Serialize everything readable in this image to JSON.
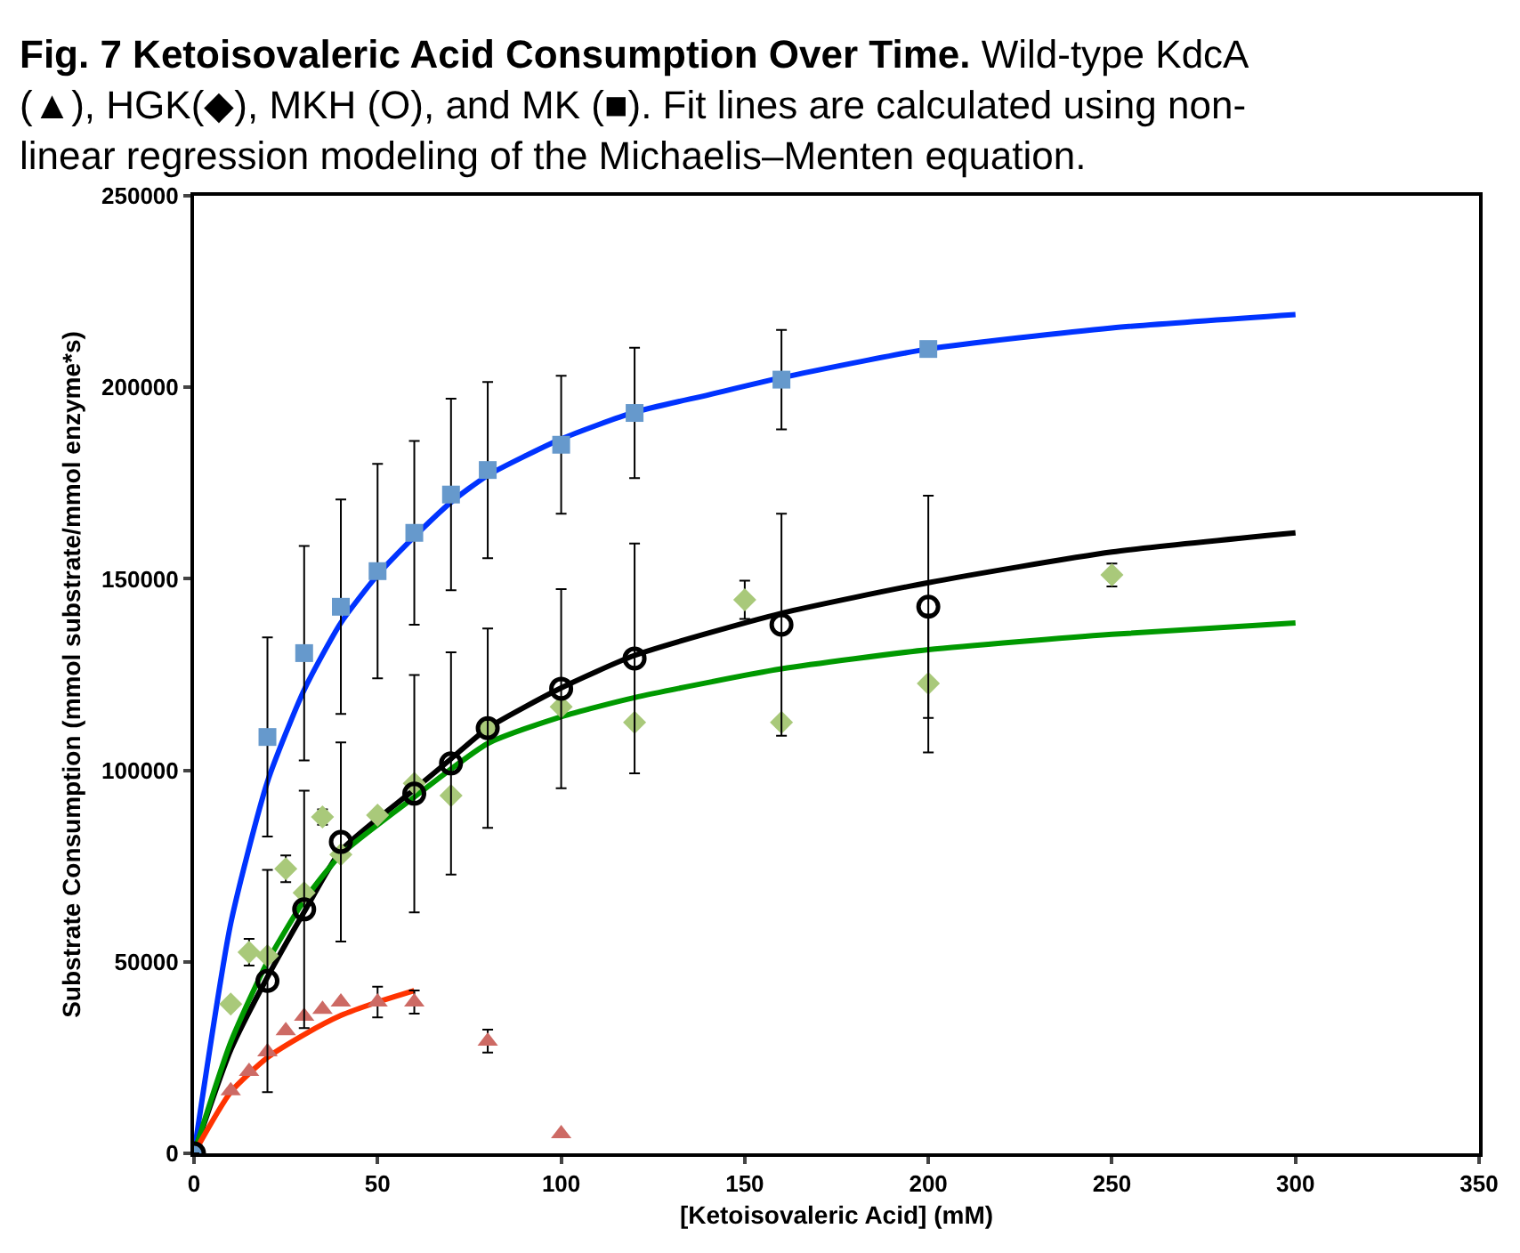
{
  "chart_data": {
    "type": "scatter",
    "title": "Fig. 7 Ketoisovaleric Acid Consumption Over Time.",
    "subtitle": "Wild-type KdcA (▲), HGK(◆), MKH (O), and MK (■). Fit lines are calculated using non-linear regression modeling of the Michaelis–Menten equation.",
    "xlabel": "[Ketoisovaleric Acid] (mM)",
    "ylabel": "Substrate Consumption (mmol substrate/mmol enzyme*s)",
    "xlim": [
      0,
      350
    ],
    "xticks": [
      0,
      50,
      100,
      150,
      200,
      250,
      300,
      350
    ],
    "ylim": [
      0,
      250000
    ],
    "yticks": [
      0,
      50000,
      100000,
      150000,
      200000,
      250000
    ],
    "series": [
      {
        "type": "line",
        "color": "#0033ff",
        "x": [
          0,
          10,
          20,
          30,
          40,
          50,
          60,
          70,
          80,
          100,
          120,
          140,
          160,
          200,
          250,
          300
        ],
        "values": [
          0,
          60000,
          97000,
          121000,
          138500,
          151000,
          161000,
          170000,
          177000,
          186500,
          193500,
          198000,
          202500,
          210000,
          215500,
          219000
        ]
      },
      {
        "type": "line",
        "color": "#000000",
        "x": [
          0,
          10,
          20,
          30,
          40,
          60,
          70,
          80,
          100,
          120,
          160,
          200,
          250,
          300
        ],
        "values": [
          0,
          27000,
          46000,
          63000,
          79000,
          95000,
          103000,
          111000,
          121500,
          130000,
          141000,
          149000,
          157000,
          162000
        ]
      },
      {
        "type": "line",
        "color": "#009900",
        "x": [
          0,
          10,
          20,
          30,
          40,
          60,
          80,
          100,
          120,
          160,
          200,
          250,
          300
        ],
        "values": [
          0,
          29000,
          50000,
          66000,
          78000,
          93000,
          107000,
          114000,
          119000,
          126500,
          131500,
          135500,
          138500
        ]
      },
      {
        "type": "line",
        "color": "#ff3300",
        "x": [
          0,
          10,
          20,
          30,
          40,
          50,
          60
        ],
        "values": [
          0,
          16000,
          25000,
          31000,
          36000,
          39500,
          42500
        ]
      },
      {
        "marker": "square",
        "color": "#6699cc",
        "x": [
          0,
          20,
          30,
          40,
          50,
          60,
          70,
          80,
          100,
          120,
          160,
          200
        ],
        "values": [
          0,
          108700,
          130600,
          142700,
          152000,
          162000,
          172000,
          178400,
          185000,
          193300,
          202000,
          210000
        ],
        "errors": [
          null,
          26000,
          28000,
          28000,
          28000,
          24000,
          25000,
          23000,
          18000,
          17000,
          13000,
          null
        ]
      },
      {
        "marker": "circle",
        "color": "#000000",
        "x": [
          0,
          20,
          30,
          40,
          60,
          70,
          80,
          100,
          120,
          160,
          200
        ],
        "values": [
          0,
          45000,
          63700,
          81300,
          93900,
          101800,
          111000,
          121300,
          129200,
          138000,
          142700
        ],
        "errors": [
          null,
          29000,
          31000,
          26000,
          31000,
          29000,
          26000,
          26000,
          30000,
          29000,
          29000
        ]
      },
      {
        "marker": "diamond",
        "color": "#a9c97a",
        "x": [
          10,
          15,
          20,
          25,
          30,
          35,
          40,
          50,
          60,
          70,
          80,
          100,
          120,
          150,
          160,
          200,
          250
        ],
        "values": [
          39000,
          52500,
          51600,
          74300,
          68000,
          87800,
          78000,
          88300,
          96600,
          93400,
          111000,
          116600,
          112500,
          144500,
          112500,
          122700,
          151000
        ],
        "errors": [
          null,
          3500,
          null,
          3500,
          null,
          2000,
          null,
          null,
          null,
          null,
          null,
          null,
          null,
          5000,
          null,
          18000,
          3000
        ]
      },
      {
        "marker": "triangle",
        "color": "#cd6a64",
        "x": [
          10,
          15,
          20,
          25,
          30,
          35,
          40,
          50,
          60,
          80,
          100
        ],
        "values": [
          16300,
          21400,
          26500,
          32000,
          35800,
          37600,
          39500,
          39500,
          39500,
          29300,
          5100
        ],
        "errors": [
          null,
          null,
          null,
          null,
          null,
          null,
          null,
          4000,
          3000,
          3000,
          null
        ]
      }
    ]
  }
}
